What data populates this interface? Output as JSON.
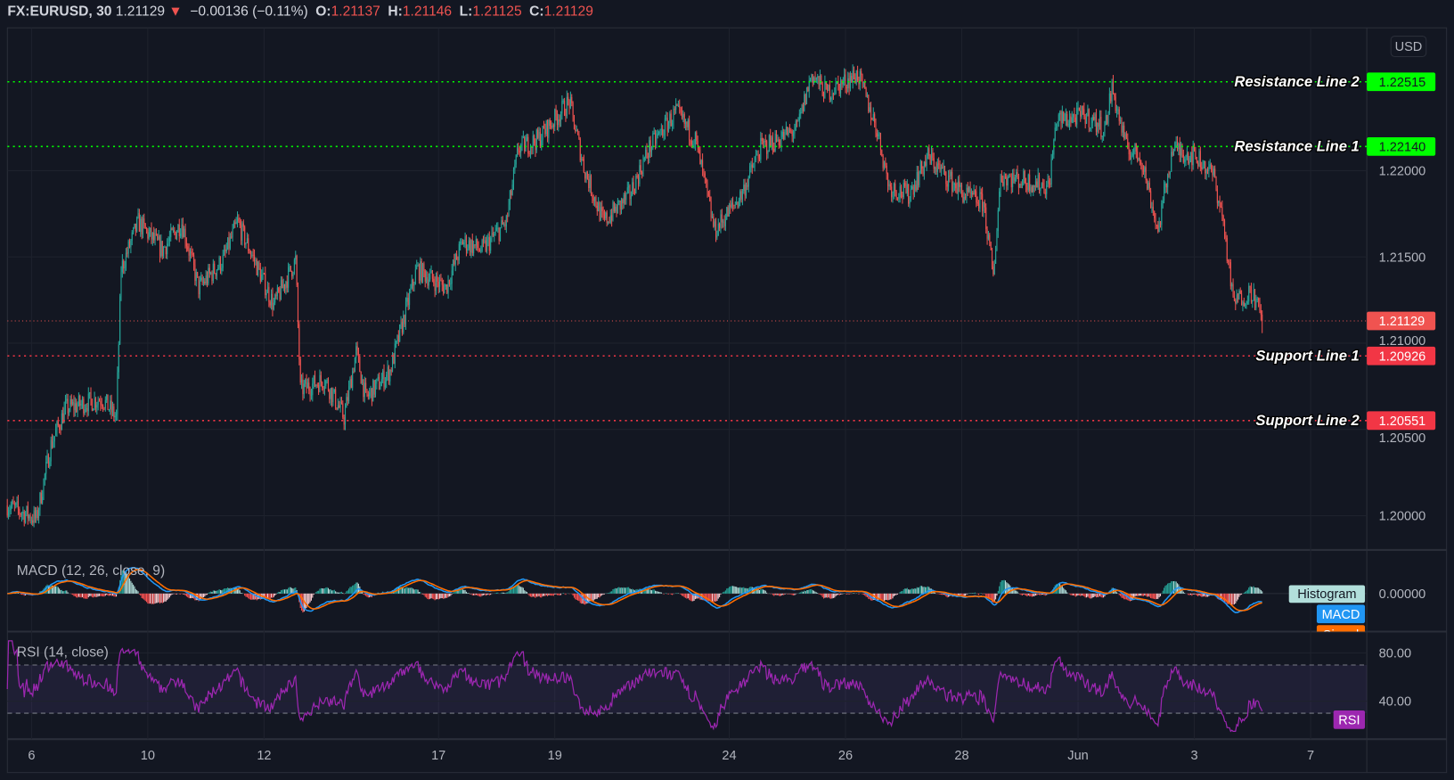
{
  "header": {
    "symbol": "FX:EURUSD, 30",
    "last": "1.21129",
    "direction_icon": "triangle-down",
    "change": "−0.00136 (−0.11%)",
    "o_label": "O:",
    "o": "1.21137",
    "h_label": "H:",
    "h": "1.21146",
    "l_label": "L:",
    "l": "1.21125",
    "c_label": "C:",
    "c": "1.21129"
  },
  "currency_button": "USD",
  "colors": {
    "background": "#131722",
    "up": "#26a69a",
    "down": "#ef5350",
    "grid": "#1e222d"
  },
  "chart_data": {
    "type": "candlestick",
    "interval": "30",
    "ylim": [
      1.1978,
      1.2283
    ],
    "price_ticks": [
      "1.22000",
      "1.21500",
      "1.21000",
      "1.20500",
      "1.20000"
    ],
    "time_labels": [
      "6",
      "10",
      "12",
      "17",
      "19",
      "24",
      "26",
      "28",
      "Jun",
      "3",
      "7"
    ],
    "grid": true,
    "last_price": "1.21129",
    "price_path": [
      [
        "May 5 14:00",
        1.2006
      ],
      [
        "May 6 02:00",
        1.1998
      ],
      [
        "May 6 08:00",
        1.2041
      ],
      [
        "May 6 14:00",
        1.2062
      ],
      [
        "May 7 05:00",
        1.2068
      ],
      [
        "May 7 11:00",
        1.2057
      ],
      [
        "May 7 13:00",
        1.2143
      ],
      [
        "May 7 20:00",
        1.217
      ],
      [
        "May 10 06:00",
        1.2154
      ],
      [
        "May 10 14:00",
        1.217
      ],
      [
        "May 10 21:00",
        1.2132
      ],
      [
        "May 11 07:00",
        1.2148
      ],
      [
        "May 11 13:00",
        1.217
      ],
      [
        "May 11 20:00",
        1.2148
      ],
      [
        "May 12 04:00",
        1.2122
      ],
      [
        "May 12 13:00",
        1.2148
      ],
      [
        "May 12 15:00",
        1.2073
      ],
      [
        "May 13 01:00",
        1.2079
      ],
      [
        "May 13 09:00",
        1.2057
      ],
      [
        "May 13 14:00",
        1.2095
      ],
      [
        "May 13 18:00",
        1.2068
      ],
      [
        "May 14 04:00",
        1.2084
      ],
      [
        "May 14 10:00",
        1.2116
      ],
      [
        "May 14 15:00",
        1.2143
      ],
      [
        "May 17 03:00",
        1.2132
      ],
      [
        "May 17 10:00",
        1.2159
      ],
      [
        "May 17 18:00",
        1.2154
      ],
      [
        "May 18 04:00",
        1.217
      ],
      [
        "May 18 09:00",
        1.2213
      ],
      [
        "May 18 17:00",
        1.2218
      ],
      [
        "May 19 06:00",
        1.224
      ],
      [
        "May 19 12:00",
        1.2202
      ],
      [
        "May 19 20:00",
        1.217
      ],
      [
        "May 20 07:00",
        1.2186
      ],
      [
        "May 20 15:00",
        1.2213
      ],
      [
        "May 21 02:00",
        1.2234
      ],
      [
        "May 21 10:00",
        1.2218
      ],
      [
        "May 21 18:00",
        1.2165
      ],
      [
        "May 24 05:00",
        1.2186
      ],
      [
        "May 24 13:00",
        1.2213
      ],
      [
        "May 25 04:00",
        1.2224
      ],
      [
        "May 25 10:00",
        1.2256
      ],
      [
        "May 25 16:00",
        1.2245
      ],
      [
        "May 26 05:00",
        1.2256
      ],
      [
        "May 26 13:00",
        1.2224
      ],
      [
        "May 26 18:00",
        1.2191
      ],
      [
        "May 27 02:00",
        1.2186
      ],
      [
        "May 27 10:00",
        1.2208
      ],
      [
        "May 28 01:00",
        1.2186
      ],
      [
        "May 28 09:00",
        1.2181
      ],
      [
        "May 28 13:00",
        1.2138
      ],
      [
        "May 28 16:00",
        1.2197
      ],
      [
        "May 31 12:00",
        1.2191
      ],
      [
        "May 31 15:00",
        1.2229
      ],
      [
        "Jun 1 03:00",
        1.2232
      ],
      [
        "Jun 1 11:00",
        1.2224
      ],
      [
        "Jun 1 14:00",
        1.2248
      ],
      [
        "Jun 1 20:00",
        1.2213
      ],
      [
        "Jun 2 02:00",
        1.2208
      ],
      [
        "Jun 2 09:00",
        1.2165
      ],
      [
        "Jun 2 15:00",
        1.2213
      ],
      [
        "Jun 3 01:00",
        1.2208
      ],
      [
        "Jun 3 08:00",
        1.2197
      ],
      [
        "Jun 3 12:00",
        1.217
      ],
      [
        "Jun 3 16:00",
        1.2124
      ],
      [
        "Jun 4 00:00",
        1.213
      ],
      [
        "Jun 4 04:00",
        1.2113
      ]
    ],
    "levels": [
      {
        "name": "Resistance Line 2",
        "value": "1.22515",
        "color": "#00ff00"
      },
      {
        "name": "Resistance Line 1",
        "value": "1.22140",
        "color": "#00ff00"
      },
      {
        "name": "Support Line 1",
        "value": "1.20926",
        "color": "#f23645"
      },
      {
        "name": "Support Line 2",
        "value": "1.20551",
        "color": "#f23645"
      }
    ]
  },
  "indicators": {
    "macd": {
      "title": "MACD (12, 26, close, 9)",
      "axis_tick": "0.00000",
      "legend": {
        "histogram": "Histogram",
        "macd": "MACD",
        "signal": "Signal"
      },
      "colors": {
        "macd": "#2196f3",
        "signal": "#ff6d00",
        "histogram": "#b2dfdb"
      }
    },
    "rsi": {
      "title": "RSI (14, close)",
      "ticks": [
        "80.00",
        "40.00"
      ],
      "bands": [
        70,
        30
      ],
      "legend": "RSI",
      "color": "#9c27b0"
    }
  }
}
